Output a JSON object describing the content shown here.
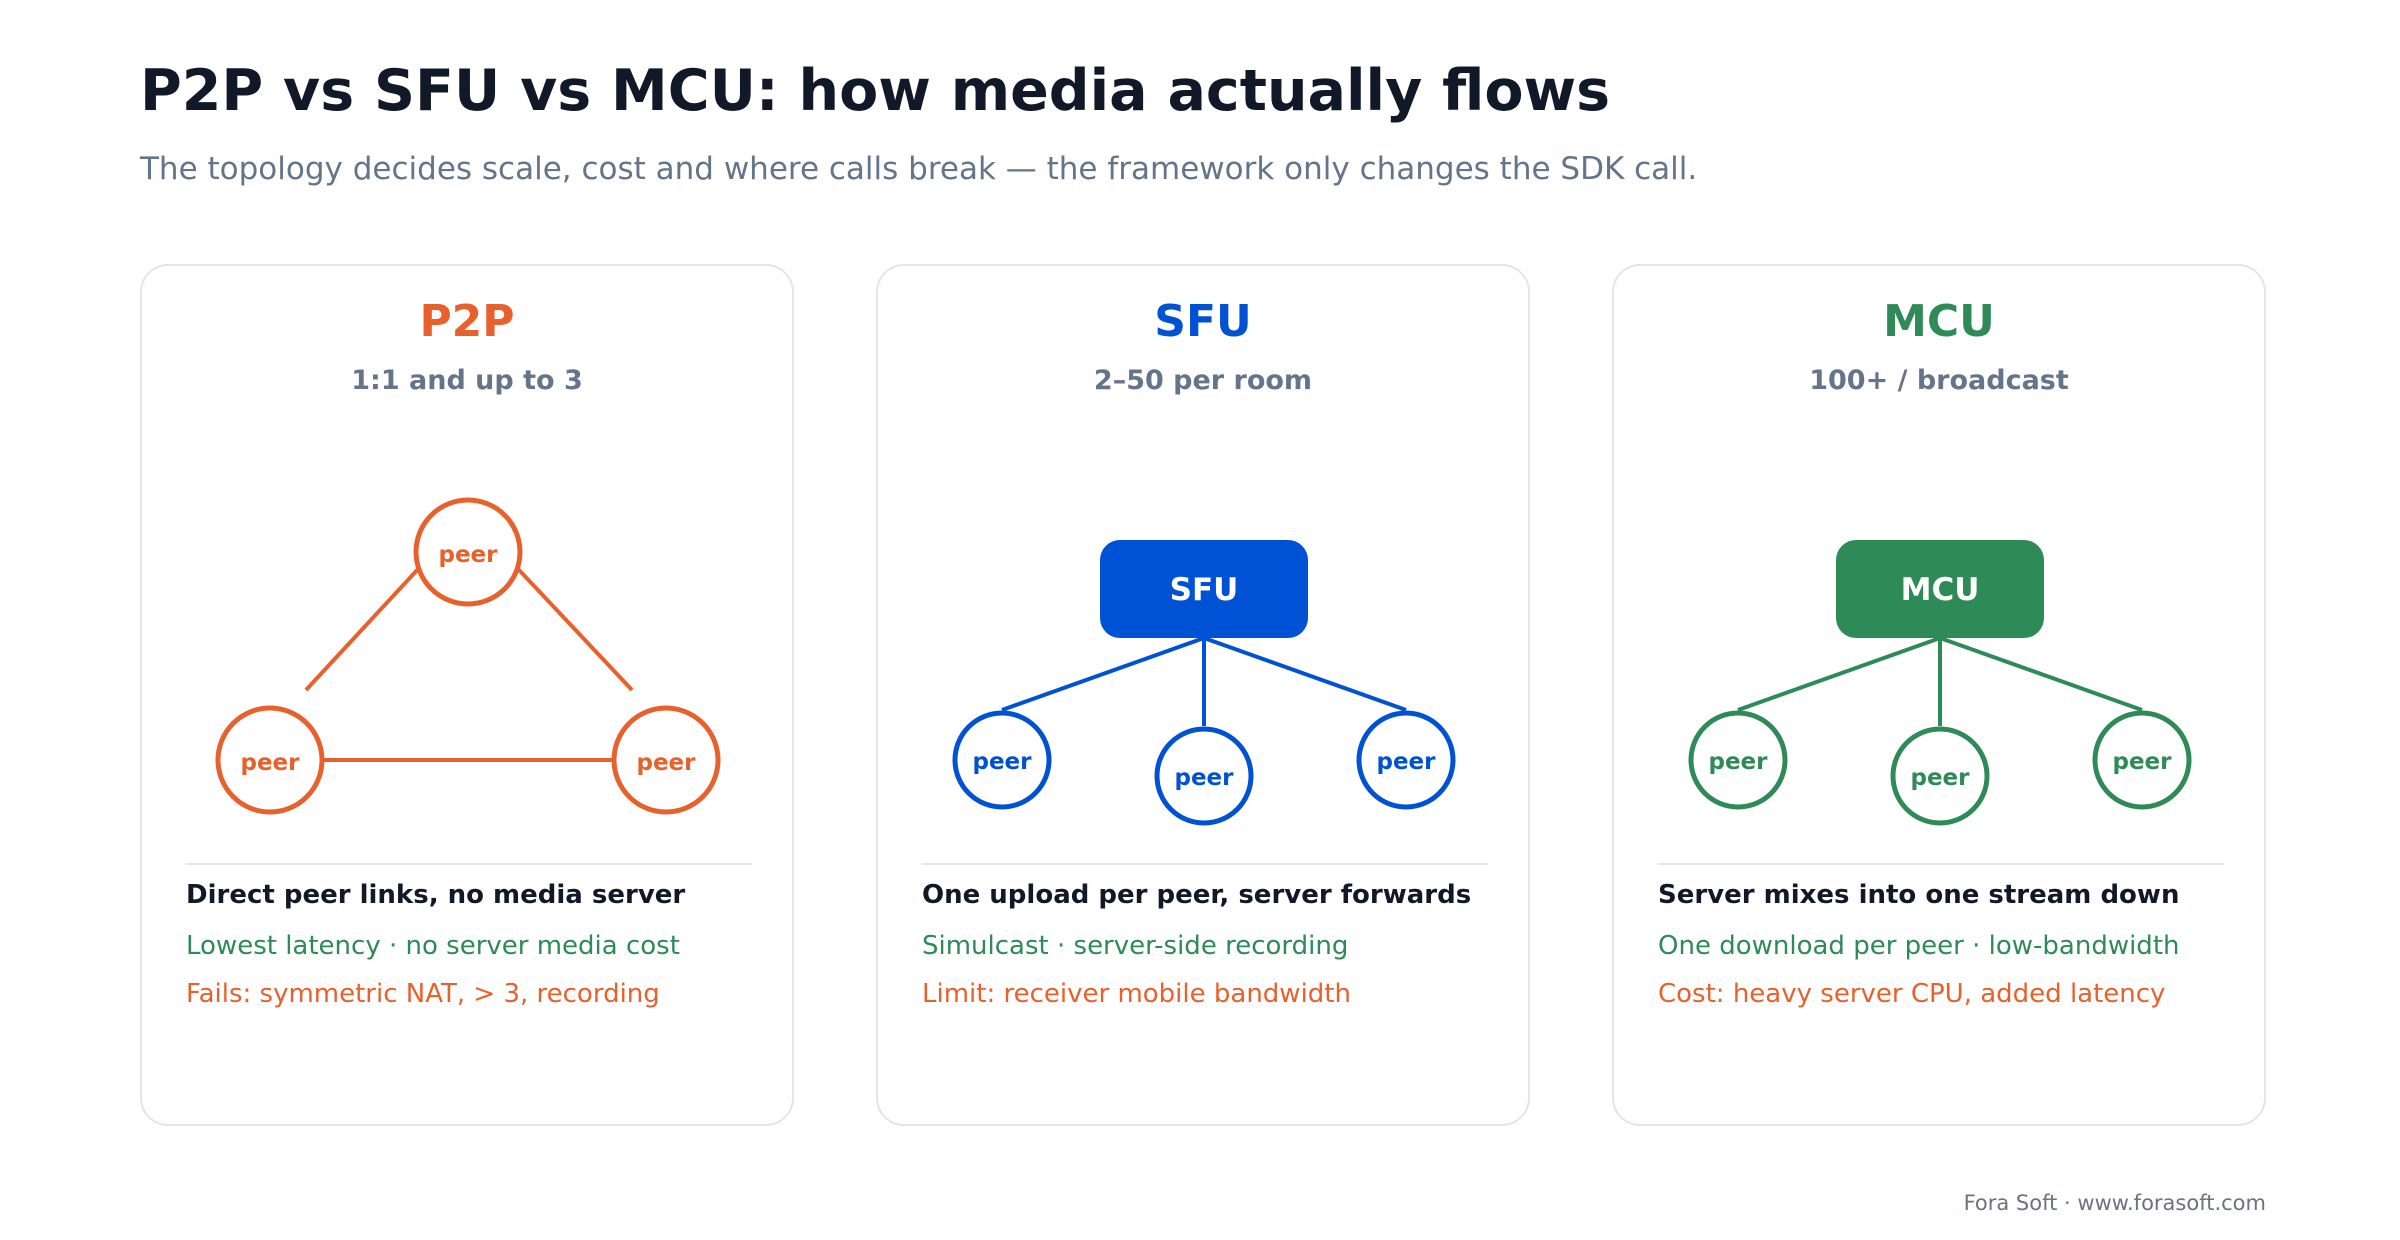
{
  "header": {
    "title": "P2P vs SFU vs MCU: how media actually flows",
    "subtitle": "The topology decides scale, cost and where calls break — the framework only changes the SDK call."
  },
  "colors": {
    "p2p": "#e8612c",
    "sfu": "#0052d4",
    "mcu": "#2e8b57",
    "text_dark": "#111827",
    "text_muted": "#64748b",
    "border": "#e2e4ee"
  },
  "cards": [
    {
      "name": "P2P",
      "scale": "1:1 and up to 3",
      "peer_label": "peer",
      "headline": "Direct peer links, no media server",
      "pros": "Lowest latency · no server media cost",
      "cons": "Fails: symmetric NAT, > 3, recording"
    },
    {
      "name": "SFU",
      "scale": "2–50 per room",
      "server_label": "SFU",
      "peer_label": "peer",
      "headline": "One upload per peer, server forwards",
      "pros": "Simulcast · server-side recording",
      "cons": "Limit: receiver mobile bandwidth"
    },
    {
      "name": "MCU",
      "scale": "100+ / broadcast",
      "server_label": "MCU",
      "peer_label": "peer",
      "headline": "Server mixes into one stream down",
      "pros": "One download per peer · low-bandwidth",
      "cons": "Cost: heavy server CPU, added latency"
    }
  ],
  "footer": "Fora Soft · www.forasoft.com"
}
